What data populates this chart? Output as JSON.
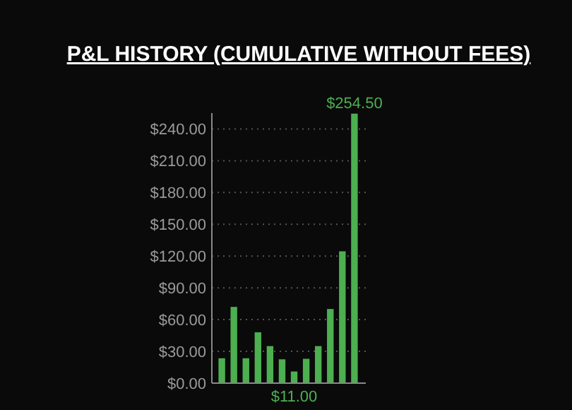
{
  "chart_data": {
    "type": "bar",
    "title": "P&L HISTORY (CUMULATIVE WITHOUT FEES)",
    "categories": [
      null,
      null,
      null,
      null,
      null,
      null,
      null,
      null,
      null,
      null,
      null,
      null
    ],
    "values": [
      23.5,
      72,
      23.5,
      48,
      35,
      22.5,
      11,
      23,
      35,
      70,
      124.5,
      254.5
    ],
    "value_labels": [
      null,
      null,
      null,
      null,
      null,
      null,
      "$11.00",
      null,
      null,
      null,
      null,
      "$254.50"
    ],
    "color": "#4caf50",
    "ylim": [
      0,
      255
    ],
    "yticks": [
      {
        "value": 0,
        "label": "$0.00"
      },
      {
        "value": 30,
        "label": "$30.00"
      },
      {
        "value": 60,
        "label": "$60.00"
      },
      {
        "value": 90,
        "label": "$90.00"
      },
      {
        "value": 120,
        "label": "$120.00"
      },
      {
        "value": 150,
        "label": "$150.00"
      },
      {
        "value": 180,
        "label": "$180.00"
      },
      {
        "value": 210,
        "label": "$210.00"
      },
      {
        "value": 240,
        "label": "$240.00"
      }
    ],
    "grid": "y"
  }
}
